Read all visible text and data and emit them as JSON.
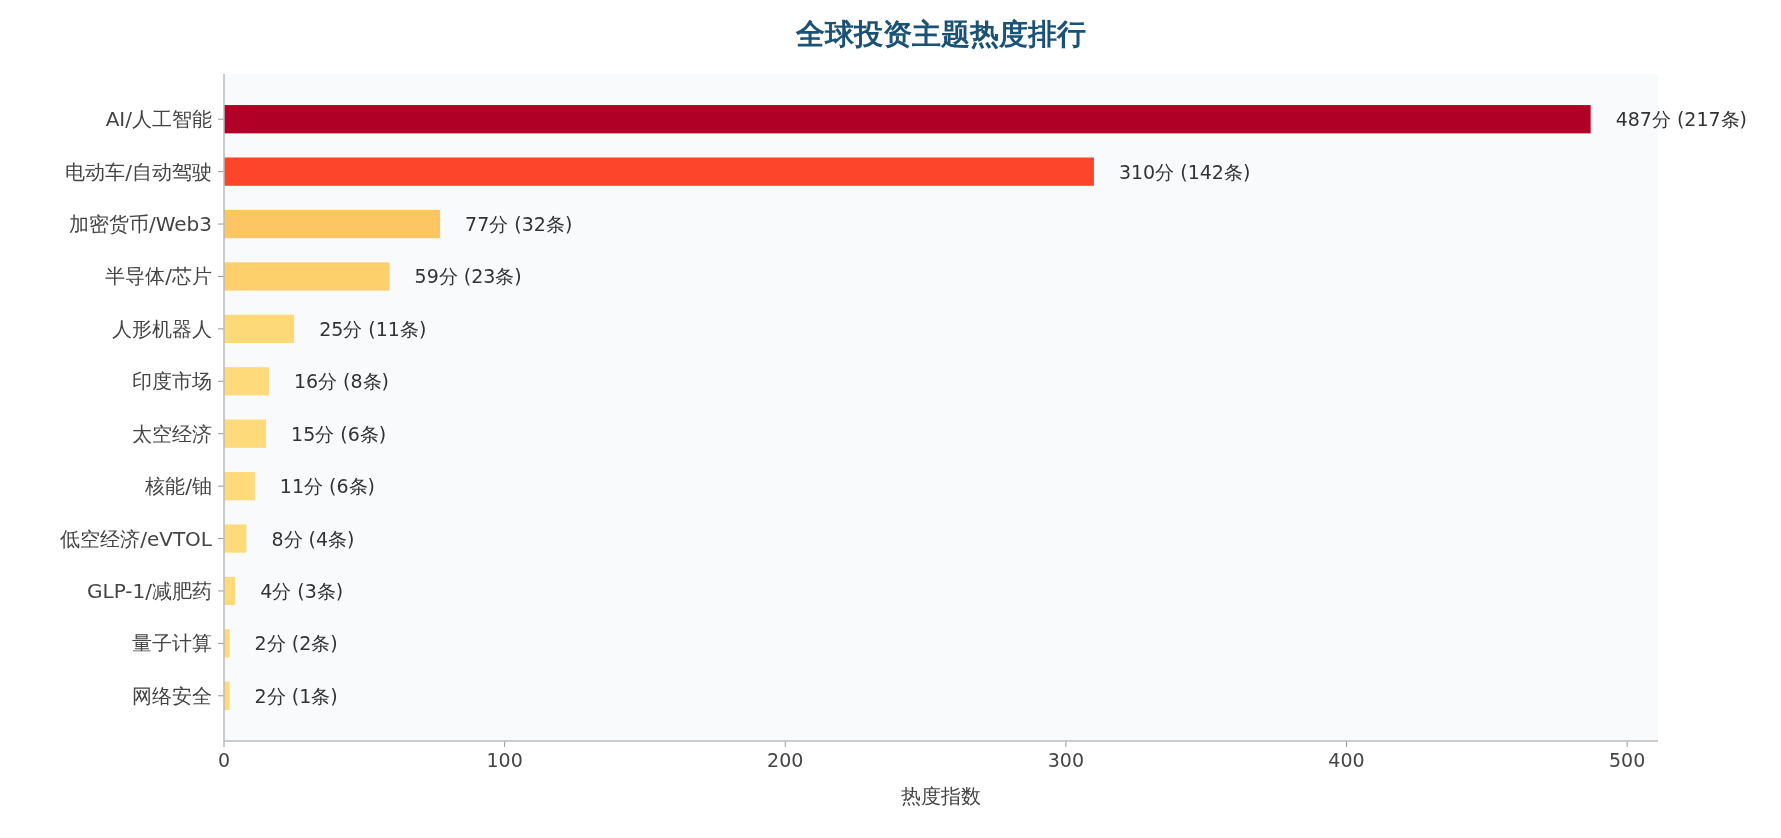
{
  "chart_data": {
    "type": "bar",
    "orientation": "horizontal",
    "title": "全球投资主题热度排行",
    "xlabel": "热度指数",
    "categories": [
      "AI/人工智能",
      "电动车/自动驾驶",
      "加密货币/Web3",
      "半导体/芯片",
      "人形机器人",
      "印度市场",
      "太空经济",
      "核能/铀",
      "低空经济/eVTOL",
      "GLP-1/减肥药",
      "量子计算",
      "网络安全"
    ],
    "values": [
      487,
      310,
      77,
      59,
      25,
      16,
      15,
      11,
      8,
      4,
      2,
      2
    ],
    "colors": [
      "#b10026",
      "#fc452a",
      "#fec663",
      "#fed06c",
      "#fed978",
      "#feda7b",
      "#feda7b",
      "#feda7b",
      "#feda7b",
      "#feda7b",
      "#feda7b",
      "#feda7b"
    ],
    "value_labels": [
      "487分 (217条)",
      "310分 (142条)",
      "77分 (32条)",
      "59分 (23条)",
      "25分 (11条)",
      "16分 (8条)",
      "15分 (6条)",
      "11分 (6条)",
      "8分 (4条)",
      "4分 (3条)",
      "2分 (2条)",
      "2分 (1条)"
    ],
    "xlim": [
      0,
      511
    ],
    "xticks": [
      0,
      100,
      200,
      300,
      400,
      500
    ]
  }
}
